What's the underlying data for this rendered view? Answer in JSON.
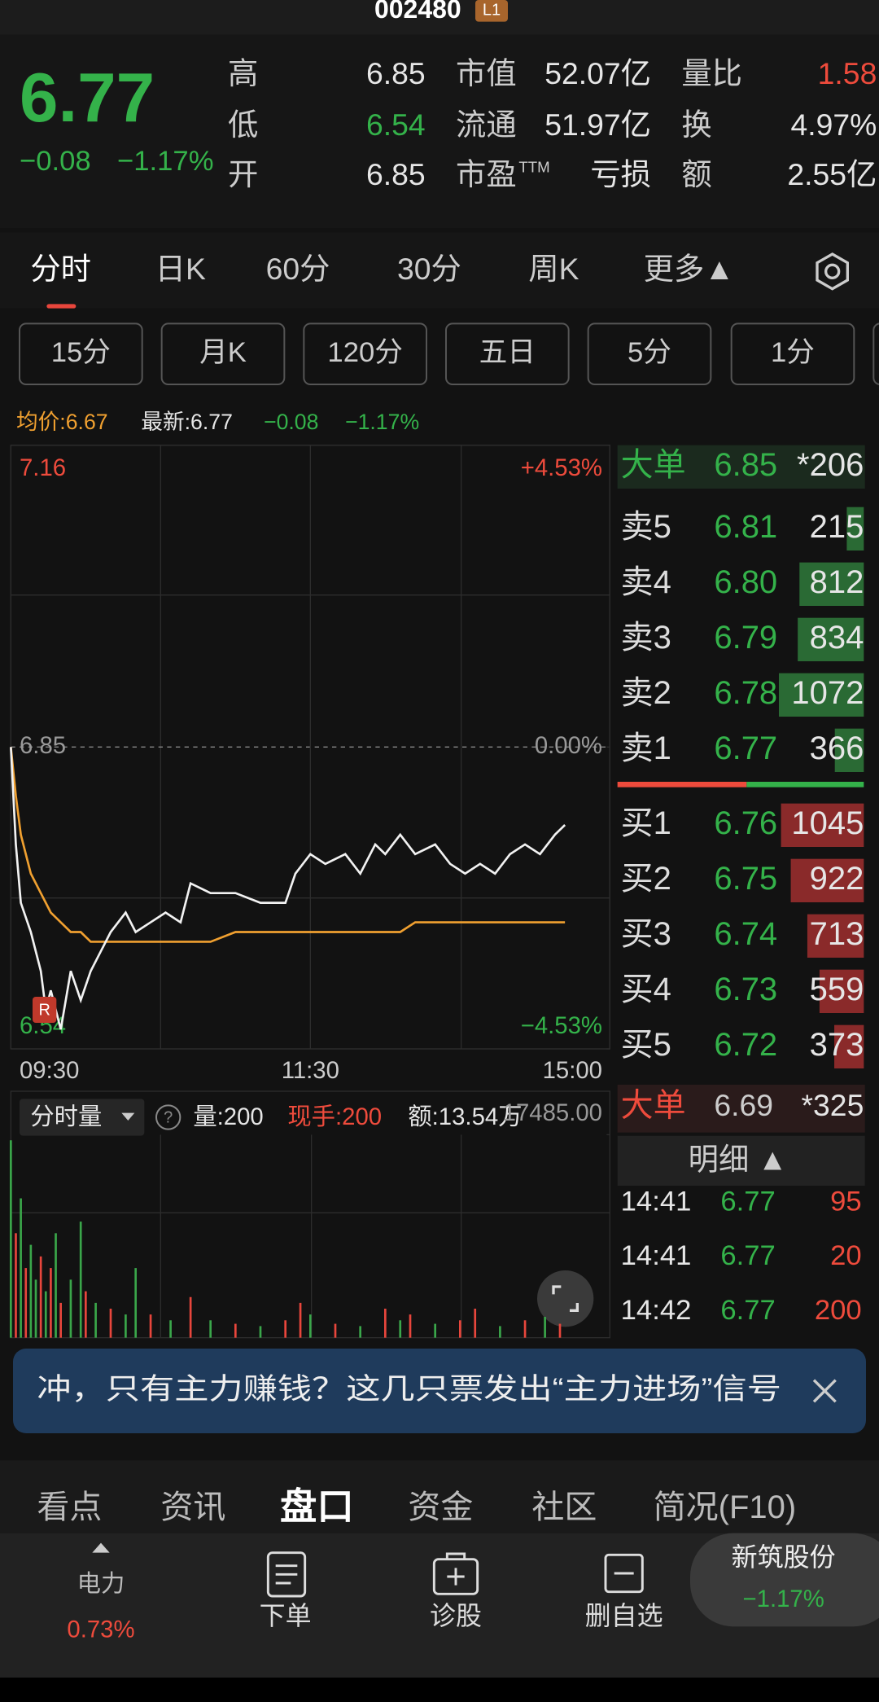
{
  "header": {
    "code": "002480",
    "badge": "L1"
  },
  "quote": {
    "price": "6.77",
    "change": "−0.08",
    "change_pct": "−1.17%",
    "stats": [
      [
        "高",
        "6.85"
      ],
      [
        "低",
        "6.54"
      ],
      [
        "开",
        "6.85"
      ],
      [
        "市值",
        "52.07亿"
      ],
      [
        "流通",
        "51.97亿"
      ],
      [
        "市盈",
        "亏损"
      ],
      [
        "量比",
        "1.58"
      ],
      [
        "换",
        "4.97%"
      ],
      [
        "额",
        "2.55亿"
      ]
    ],
    "ttm": "TTM"
  },
  "tabs": [
    "分时",
    "日K",
    "60分",
    "30分",
    "周K",
    "更多▲"
  ],
  "subtabs": [
    "15分",
    "月K",
    "120分",
    "五日",
    "5分",
    "1分"
  ],
  "info": {
    "avg": "均价:6.67",
    "latest": "最新:6.77",
    "change": "−0.08",
    "change_pct": "−1.17%"
  },
  "chart_data": [
    {
      "type": "line",
      "x": [
        0,
        2,
        4,
        8,
        12,
        14,
        16,
        20,
        24,
        28,
        32,
        36,
        40,
        46,
        50,
        56,
        62,
        68,
        72,
        80,
        90,
        100,
        110,
        114,
        120,
        126,
        134,
        140,
        146,
        150,
        156,
        162,
        170,
        176,
        182,
        188,
        194,
        200,
        206,
        212,
        218,
        222
      ],
      "series": [
        {
          "color": "#f2f2f2",
          "values": [
            6.85,
            6.75,
            6.69,
            6.66,
            6.62,
            6.58,
            6.6,
            6.56,
            6.62,
            6.59,
            6.62,
            6.64,
            6.66,
            6.68,
            6.66,
            6.67,
            6.68,
            6.67,
            6.71,
            6.7,
            6.7,
            6.69,
            6.69,
            6.72,
            6.74,
            6.73,
            6.74,
            6.72,
            6.75,
            6.74,
            6.76,
            6.74,
            6.75,
            6.73,
            6.72,
            6.73,
            6.72,
            6.74,
            6.75,
            6.74,
            6.76,
            6.77
          ]
        },
        {
          "color": "#f0a030",
          "values": [
            6.85,
            6.8,
            6.76,
            6.72,
            6.7,
            6.69,
            6.68,
            6.67,
            6.66,
            6.66,
            6.65,
            6.65,
            6.65,
            6.65,
            6.65,
            6.65,
            6.65,
            6.65,
            6.65,
            6.65,
            6.66,
            6.66,
            6.66,
            6.66,
            6.66,
            6.66,
            6.66,
            6.66,
            6.66,
            6.66,
            6.66,
            6.67,
            6.67,
            6.67,
            6.67,
            6.67,
            6.67,
            6.67,
            6.67,
            6.67,
            6.67,
            6.67
          ]
        }
      ],
      "xlim": [
        0,
        240
      ],
      "xticks": [
        {
          "value": 0,
          "label": "09:30"
        },
        {
          "value": 120,
          "label": "11:30"
        },
        {
          "value": 240,
          "label": "15:00"
        }
      ],
      "ylim": [
        6.54,
        7.16
      ],
      "yticks": [
        6.54,
        6.85,
        7.16
      ],
      "y2lim": [
        -4.53,
        4.53
      ],
      "y2ticks": [
        {
          "value": -4.53,
          "label": "−4.53%"
        },
        {
          "value": 0,
          "label": "0.00%"
        },
        {
          "value": 4.53,
          "label": "+4.53%"
        }
      ]
    },
    {
      "type": "bar",
      "title": "分时量",
      "x": [
        0,
        2,
        4,
        6,
        8,
        10,
        12,
        14,
        16,
        18,
        20,
        24,
        28,
        30,
        34,
        40,
        46,
        50,
        56,
        64,
        72,
        80,
        90,
        100,
        110,
        116,
        120,
        130,
        140,
        150,
        156,
        160,
        170,
        180,
        186,
        196,
        206,
        214,
        220
      ],
      "values": [
        17000,
        9000,
        12000,
        6000,
        8000,
        5000,
        7000,
        4000,
        6000,
        9000,
        3000,
        5000,
        10000,
        4000,
        3000,
        2500,
        2000,
        6000,
        2000,
        1500,
        3500,
        1500,
        1200,
        1000,
        1500,
        3000,
        2000,
        1200,
        1000,
        2500,
        1500,
        2000,
        1200,
        1500,
        2500,
        1000,
        1500,
        1800,
        1200
      ],
      "colors": [
        "#3aa64a",
        "#e8463c",
        "#3aa64a",
        "#e8463c",
        "#3aa64a",
        "#3aa64a",
        "#e8463c",
        "#3aa64a",
        "#e8463c",
        "#3aa64a",
        "#e8463c",
        "#3aa64a",
        "#3aa64a",
        "#e8463c",
        "#3aa64a",
        "#e8463c",
        "#3aa64a",
        "#3aa64a",
        "#e8463c",
        "#3aa64a",
        "#e8463c",
        "#3aa64a",
        "#e8463c",
        "#3aa64a",
        "#e8463c",
        "#e8463c",
        "#3aa64a",
        "#e8463c",
        "#3aa64a",
        "#e8463c",
        "#3aa64a",
        "#e8463c",
        "#3aa64a",
        "#e8463c",
        "#e8463c",
        "#3aa64a",
        "#e8463c",
        "#3aa64a",
        "#e8463c"
      ],
      "xlim": [
        0,
        240
      ],
      "ylim": [
        0,
        17485
      ],
      "yticks": [
        {
          "value": 17485,
          "label": "17485.00"
        }
      ],
      "annotations": [
        "量:200",
        "现手:200",
        "额:13.54万"
      ]
    }
  ],
  "order_book": {
    "big_sell": {
      "label": "大单",
      "price": "6.85",
      "volume": "*206"
    },
    "sells": [
      {
        "label": "卖5",
        "price": "6.81",
        "volume": 215
      },
      {
        "label": "卖4",
        "price": "6.80",
        "volume": 812
      },
      {
        "label": "卖3",
        "price": "6.79",
        "volume": 834
      },
      {
        "label": "卖2",
        "price": "6.78",
        "volume": 1072
      },
      {
        "label": "卖1",
        "price": "6.77",
        "volume": 366
      }
    ],
    "buys": [
      {
        "label": "买1",
        "price": "6.76",
        "volume": 1045
      },
      {
        "label": "买2",
        "price": "6.75",
        "volume": 922
      },
      {
        "label": "买3",
        "price": "6.74",
        "volume": 713
      },
      {
        "label": "买4",
        "price": "6.73",
        "volume": 559
      },
      {
        "label": "买5",
        "price": "6.72",
        "volume": 373
      }
    ],
    "big_buy": {
      "label": "大单",
      "price": "6.69",
      "volume": "*325"
    },
    "details_title": "明细 ▲",
    "details": [
      [
        "14:41",
        "6.77",
        "95"
      ],
      [
        "14:41",
        "6.77",
        "20"
      ],
      [
        "14:42",
        "6.77",
        "200"
      ]
    ]
  },
  "banner": "冲，只有主力赚钱？这几只票发出“主力进场”信号",
  "bottom_tabs": [
    "看点",
    "资讯",
    "盘口",
    "资金",
    "社区",
    "简况(F10)"
  ],
  "toolbar": {
    "index_name": "电力",
    "index_pct": "0.73%",
    "actions": [
      "下单",
      "诊股",
      "删自选"
    ],
    "stock_name": "新筑股份",
    "stock_pct": "−1.17%"
  }
}
